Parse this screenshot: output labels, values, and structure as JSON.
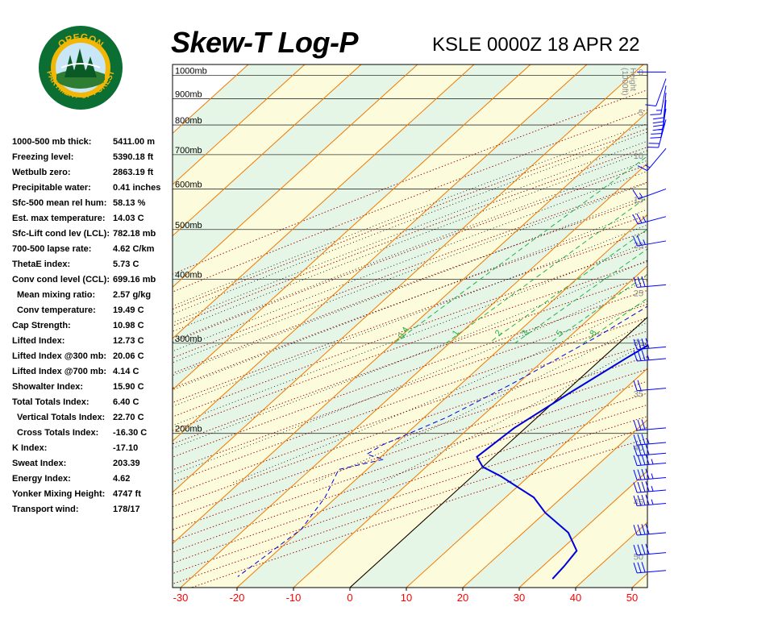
{
  "header": {
    "title": "Skew-T Log-P",
    "subtitle": "KSLE 0000Z 18 APR 22"
  },
  "logo": {
    "top_text": "OREGON",
    "ring_text": "DEPARTMENT OF FORESTRY",
    "colors": {
      "ring": "#0b6e33",
      "gold": "#f2b705",
      "sky": "#c9e6f7"
    }
  },
  "stats": [
    {
      "label": "1000-500 mb thick:",
      "value": "5411.00 m",
      "indent": false
    },
    {
      "label": "Freezing level:",
      "value": "5390.18 ft",
      "indent": false
    },
    {
      "label": "Wetbulb zero:",
      "value": "2863.19 ft",
      "indent": false
    },
    {
      "label": "Precipitable water:",
      "value": "0.41 inches",
      "indent": false
    },
    {
      "label": "Sfc-500 mean rel hum:",
      "value": "58.13 %",
      "indent": false
    },
    {
      "label": "Est. max temperature:",
      "value": "14.03 C",
      "indent": false
    },
    {
      "label": "Sfc-Lift cond lev (LCL):",
      "value": "782.18 mb",
      "indent": false
    },
    {
      "label": "700-500 lapse rate:",
      "value": "4.62 C/km",
      "indent": false
    },
    {
      "label": "ThetaE index:",
      "value": "5.73 C",
      "indent": false
    },
    {
      "label": "Conv cond level (CCL):",
      "value": "699.16 mb",
      "indent": false
    },
    {
      "label": "Mean mixing ratio:",
      "value": "2.57 g/kg",
      "indent": true
    },
    {
      "label": "Conv temperature:",
      "value": "19.49 C",
      "indent": true
    },
    {
      "label": "Cap Strength:",
      "value": "10.98 C",
      "indent": false
    },
    {
      "label": "Lifted Index:",
      "value": "12.73 C",
      "indent": false
    },
    {
      "label": "Lifted Index @300 mb:",
      "value": "20.06 C",
      "indent": false
    },
    {
      "label": "Lifted Index @700 mb:",
      "value": "4.14 C",
      "indent": false
    },
    {
      "label": "Showalter Index:",
      "value": "15.90 C",
      "indent": false
    },
    {
      "label": "Total Totals Index:",
      "value": "6.40 C",
      "indent": false
    },
    {
      "label": "Vertical Totals Index:",
      "value": "22.70 C",
      "indent": true
    },
    {
      "label": "Cross Totals Index:",
      "value": "-16.30 C",
      "indent": true
    },
    {
      "label": "K Index:",
      "value": "-17.10",
      "indent": false
    },
    {
      "label": "Sweat Index:",
      "value": "203.39",
      "indent": false
    },
    {
      "label": "Energy Index:",
      "value": "4.62",
      "indent": false
    },
    {
      "label": "Yonker Mixing Height:",
      "value": "4747 ft",
      "indent": false
    },
    {
      "label": "Transport wind:",
      "value": "178/17",
      "indent": false
    }
  ],
  "chart_data": {
    "type": "line",
    "x_axis": {
      "ticks": [
        -30,
        -20,
        -10,
        0,
        10,
        20,
        30,
        40,
        50
      ],
      "unit": "C",
      "range": [
        -31,
        53
      ]
    },
    "pressure_levels": [
      {
        "p": 200,
        "label": "200mb"
      },
      {
        "p": 300,
        "label": "300mb"
      },
      {
        "p": 400,
        "label": "400mb"
      },
      {
        "p": 500,
        "label": "500mb"
      },
      {
        "p": 600,
        "label": "600mb"
      },
      {
        "p": 700,
        "label": "700mb"
      },
      {
        "p": 800,
        "label": "800mb"
      },
      {
        "p": 900,
        "label": "900mb"
      },
      {
        "p": 1000,
        "label": "1000mb"
      }
    ],
    "height_axis": {
      "title_line1": "Height",
      "title_line2": "(1000ft)",
      "ticks": [
        {
          "label": "0",
          "p": 1015
        },
        {
          "label": "5",
          "p": 846
        },
        {
          "label": "10",
          "p": 697
        },
        {
          "label": "15",
          "p": 572
        },
        {
          "label": "20",
          "p": 466
        },
        {
          "label": "25",
          "p": 376
        },
        {
          "label": "30",
          "p": 301
        },
        {
          "label": "35",
          "p": 239
        },
        {
          "label": "40",
          "p": 188
        },
        {
          "label": "45",
          "p": 147
        },
        {
          "label": "50",
          "p": 115
        }
      ]
    },
    "mixing_ratio_labels": [
      "0.4",
      "1",
      "2",
      "3",
      "5",
      "8"
    ],
    "mixing_ratio_values": [
      0.4,
      1,
      2,
      3,
      5,
      8
    ],
    "temperature": [
      [
        16.0,
        1010
      ],
      [
        14.5,
        990
      ],
      [
        12.5,
        950
      ],
      [
        11.5,
        910
      ],
      [
        11.0,
        880
      ],
      [
        11.8,
        860
      ],
      [
        11.5,
        820
      ],
      [
        11.0,
        790
      ],
      [
        9.5,
        760
      ],
      [
        9.8,
        730
      ],
      [
        10.0,
        715
      ],
      [
        8.3,
        712
      ],
      [
        9.5,
        700
      ],
      [
        10.0,
        690
      ],
      [
        11.8,
        620
      ],
      [
        10.8,
        540
      ],
      [
        10.0,
        500
      ],
      [
        10.5,
        450
      ],
      [
        12.2,
        410
      ],
      [
        11.0,
        390
      ],
      [
        8.0,
        330
      ],
      [
        4.2,
        280
      ],
      [
        1.0,
        240
      ],
      [
        -2.0,
        205
      ],
      [
        -3.0,
        180
      ],
      [
        0.0,
        172
      ],
      [
        5.0,
        165
      ],
      [
        15.0,
        150
      ],
      [
        20.0,
        140
      ],
      [
        28.0,
        128
      ],
      [
        33.0,
        118
      ],
      [
        33.8,
        110
      ],
      [
        34.2,
        104
      ]
    ],
    "dewpoint": [
      [
        -2.0,
        1010
      ],
      [
        -2.5,
        975
      ],
      [
        -3.0,
        950
      ],
      [
        -6.0,
        935
      ],
      [
        -8.5,
        915
      ],
      [
        -11.0,
        890
      ],
      [
        -12.5,
        870
      ],
      [
        -6.0,
        862
      ],
      [
        -22.0,
        852
      ],
      [
        -3.0,
        842
      ],
      [
        -2.5,
        830
      ],
      [
        0.0,
        820
      ],
      [
        3.0,
        812
      ],
      [
        5.0,
        805
      ],
      [
        6.0,
        790
      ],
      [
        6.7,
        770
      ],
      [
        7.5,
        750
      ],
      [
        7.5,
        730
      ],
      [
        8.0,
        715
      ],
      [
        9.0,
        706
      ],
      [
        9.5,
        700
      ],
      [
        8.2,
        660
      ],
      [
        6.5,
        600
      ],
      [
        5.0,
        530
      ],
      [
        2.5,
        450
      ],
      [
        0.0,
        390
      ],
      [
        -5.0,
        310
      ],
      [
        -11.0,
        250
      ],
      [
        -16.0,
        215
      ],
      [
        -22.0,
        190
      ],
      [
        -23.0,
        182
      ],
      [
        -19.0,
        178
      ],
      [
        -25.0,
        170
      ],
      [
        -22.0,
        150
      ],
      [
        -20.0,
        130
      ],
      [
        -22.0,
        105
      ]
    ],
    "parcel_path": [
      [
        9.3,
        810
      ],
      [
        8.8,
        790
      ],
      [
        8.0,
        770
      ],
      [
        7.5,
        740
      ],
      [
        8.2,
        720
      ],
      [
        8.0,
        700
      ]
    ],
    "parcel_arrow_p": 800,
    "wind_barbs": [
      {
        "p": 1015,
        "dir": 270,
        "spd": 0
      },
      {
        "p": 985,
        "dir": 200,
        "spd": 10
      },
      {
        "p": 955,
        "dir": 190,
        "spd": 15
      },
      {
        "p": 925,
        "dir": 185,
        "spd": 20
      },
      {
        "p": 895,
        "dir": 185,
        "spd": 20
      },
      {
        "p": 860,
        "dir": 190,
        "spd": 25
      },
      {
        "p": 820,
        "dir": 195,
        "spd": 20
      },
      {
        "p": 720,
        "dir": 220,
        "spd": 15
      },
      {
        "p": 600,
        "dir": 250,
        "spd": 15
      },
      {
        "p": 530,
        "dir": 255,
        "spd": 25
      },
      {
        "p": 475,
        "dir": 260,
        "spd": 25
      },
      {
        "p": 390,
        "dir": 265,
        "spd": 30
      },
      {
        "p": 295,
        "dir": 265,
        "spd": 40
      },
      {
        "p": 280,
        "dir": 265,
        "spd": 35
      },
      {
        "p": 245,
        "dir": 265,
        "spd": 20
      },
      {
        "p": 205,
        "dir": 265,
        "spd": 30
      },
      {
        "p": 192,
        "dir": 265,
        "spd": 35
      },
      {
        "p": 183,
        "dir": 265,
        "spd": 40
      },
      {
        "p": 175,
        "dir": 265,
        "spd": 45
      },
      {
        "p": 164,
        "dir": 265,
        "spd": 45
      },
      {
        "p": 155,
        "dir": 265,
        "spd": 45
      },
      {
        "p": 146,
        "dir": 265,
        "spd": 45
      },
      {
        "p": 128,
        "dir": 265,
        "spd": 40
      },
      {
        "p": 117,
        "dir": 265,
        "spd": 40
      },
      {
        "p": 108,
        "dir": 265,
        "spd": 30
      }
    ],
    "colors": {
      "temperature": "#0000dd",
      "dewpoint": "#0000dd",
      "isotherm": "#f07800",
      "dry_adiabat": "#9a0000",
      "moist_adiabat": "#000000",
      "mixing_ratio": "#22b14c",
      "parcel": "#e6e600",
      "isobar": "#000000",
      "wind": "#0000ff",
      "band_green": "#e6f6e6",
      "band_yellow": "#fcfcdc",
      "axis_labels": "#ff0000"
    }
  }
}
